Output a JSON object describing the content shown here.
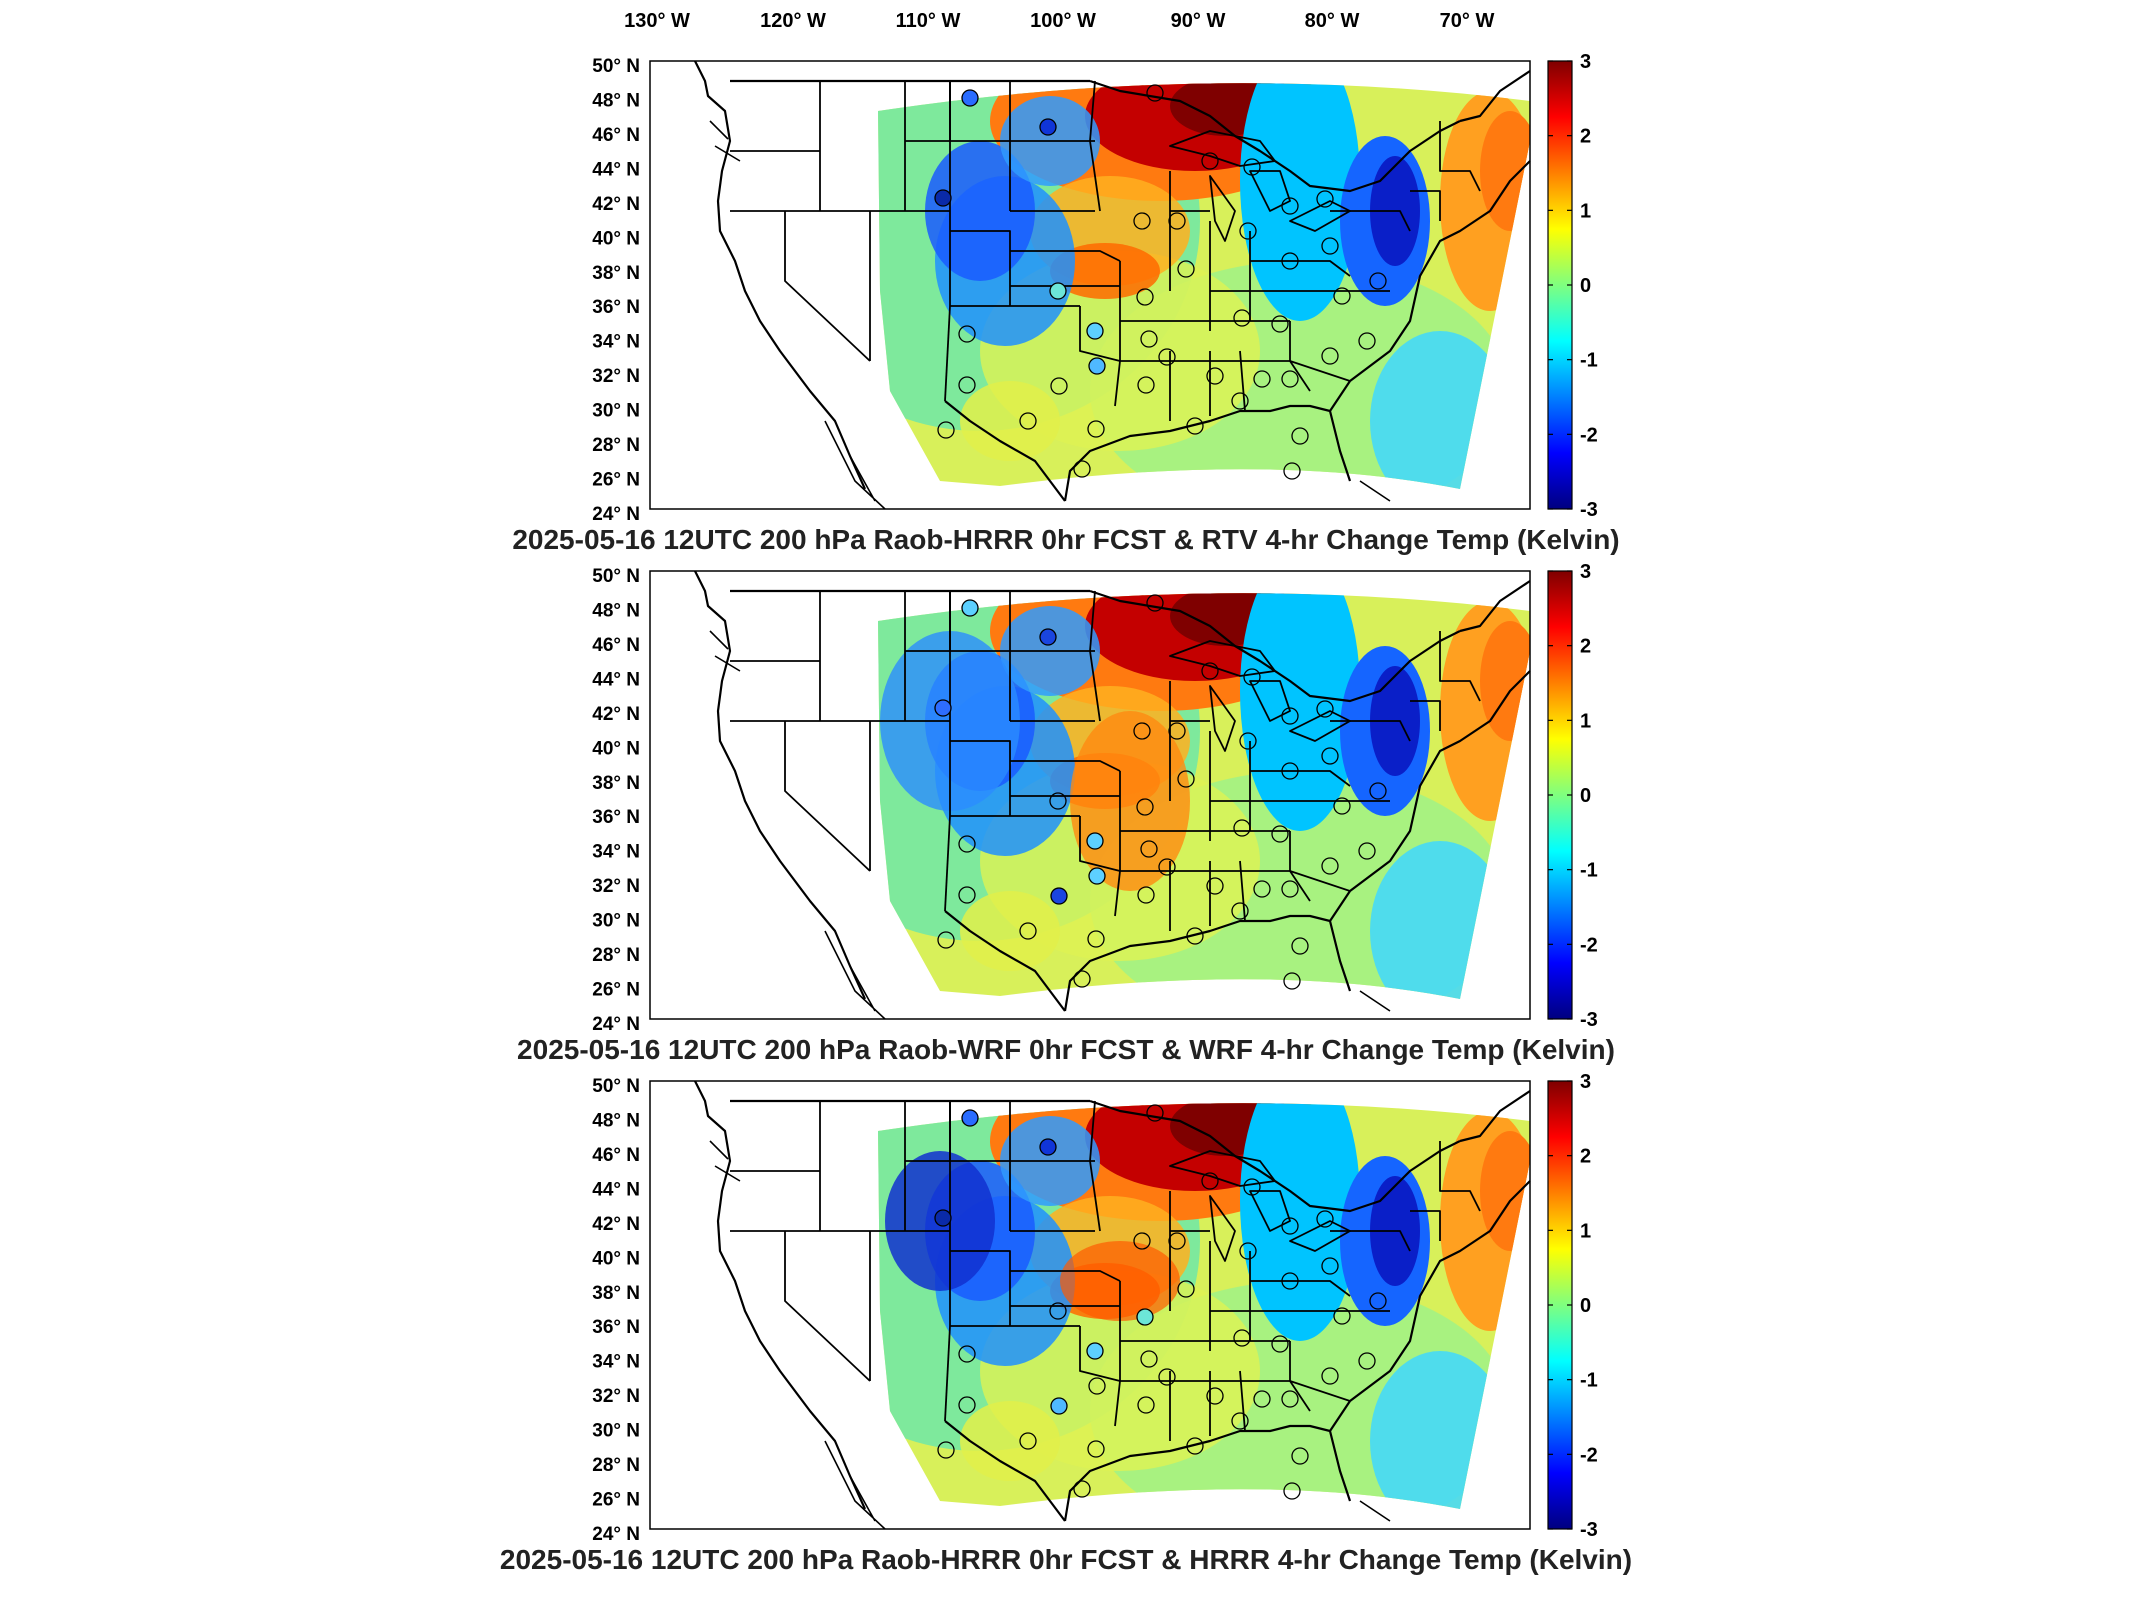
{
  "figure": {
    "lon_labels": [
      "130° W",
      "120° W",
      "110° W",
      "100° W",
      "90° W",
      "80° W",
      "70° W"
    ],
    "lat_labels": [
      "50° N",
      "48° N",
      "46° N",
      "44° N",
      "42° N",
      "40° N",
      "38° N",
      "36° N",
      "34° N",
      "32° N",
      "30° N",
      "28° N",
      "26° N",
      "24° N"
    ],
    "colorbar_ticks": [
      "3",
      "2",
      "1",
      "0",
      "-1",
      "-2",
      "-3"
    ],
    "colormap": "jet",
    "color_range": [
      -3,
      3
    ]
  },
  "panels": [
    {
      "title": "2025-05-16 12UTC 200 hPa Raob-HRRR 0hr FCST & RTV 4-hr Change Temp (Kelvin)"
    },
    {
      "title": "2025-05-16 12UTC 200 hPa Raob-WRF 0hr FCST & WRF 4-hr Change Temp (Kelvin)"
    },
    {
      "title": "2025-05-16 12UTC 200 hPa Raob-HRRR 0hr FCST & HRRR 4-hr Change Temp (Kelvin)"
    }
  ]
}
